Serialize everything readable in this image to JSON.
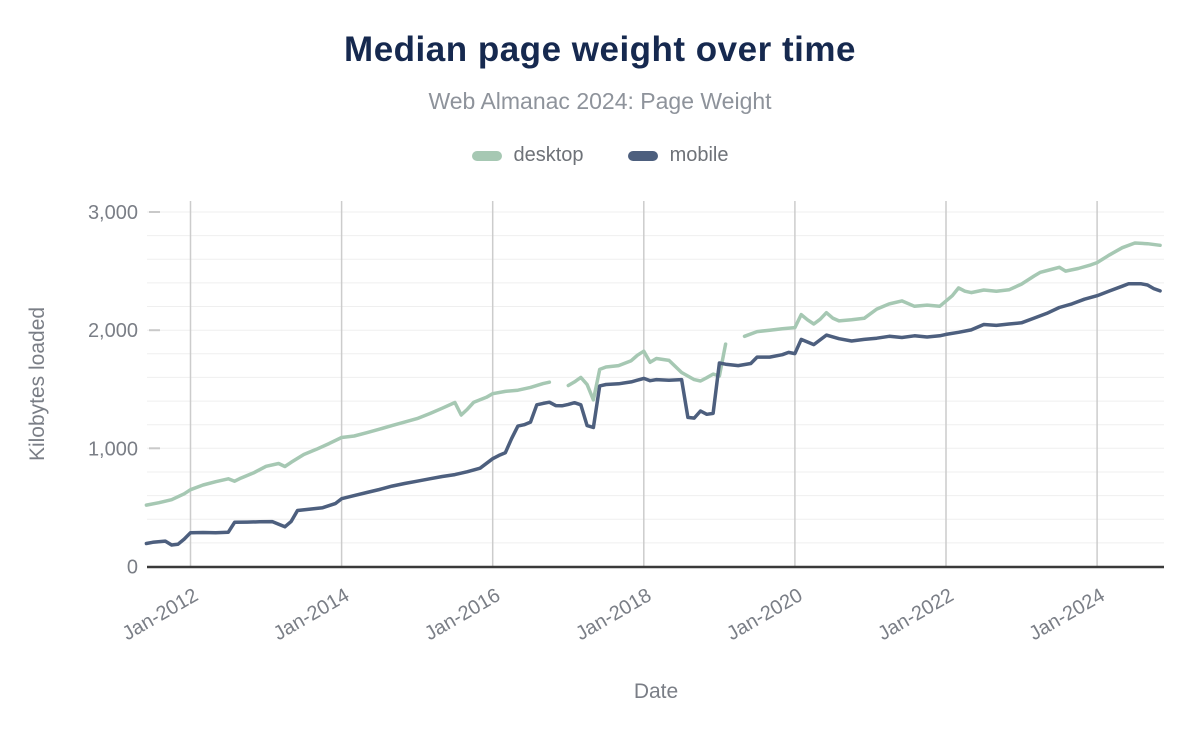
{
  "header": {
    "title": "Median page weight over time",
    "subtitle": "Web Almanac 2024: Page Weight"
  },
  "colors": {
    "title": "#16294f",
    "subtitle": "#8e939b",
    "tick_text": "#7a7e86",
    "axis_line": "#3a3a3a",
    "grid_minor": "#efefef",
    "grid_vertical": "#cccccc",
    "desktop": "#a6c8b3",
    "mobile": "#4d5f7e"
  },
  "chart_data": {
    "type": "line",
    "title": "Median page weight over time",
    "subtitle": "Web Almanac 2024: Page Weight",
    "xlabel": "Date",
    "ylabel": "Kilobytes loaded",
    "ylim": [
      0,
      3000
    ],
    "y_minor_step": 200,
    "grid": true,
    "legend_position": "top",
    "x_range_dates": [
      "2011-06",
      "2024-11"
    ],
    "x_ticks": [
      {
        "year": 2012,
        "label": "Jan-2012"
      },
      {
        "year": 2014,
        "label": "Jan-2014"
      },
      {
        "year": 2016,
        "label": "Jan-2016"
      },
      {
        "year": 2018,
        "label": "Jan-2018"
      },
      {
        "year": 2020,
        "label": "Jan-2020"
      },
      {
        "year": 2022,
        "label": "Jan-2022"
      },
      {
        "year": 2024,
        "label": "Jan-2024"
      }
    ],
    "y_ticks": [
      {
        "value": 0,
        "label": "0"
      },
      {
        "value": 1000,
        "label": "1,000"
      },
      {
        "value": 2000,
        "label": "2,000"
      },
      {
        "value": 3000,
        "label": "3,000"
      }
    ],
    "series": [
      {
        "name": "desktop",
        "color": "#a6c8b3",
        "unit": "KB",
        "points": [
          [
            "2011-06",
            520
          ],
          [
            "2011-08",
            540
          ],
          [
            "2011-10",
            565
          ],
          [
            "2011-12",
            615
          ],
          [
            "2012-01",
            650
          ],
          [
            "2012-03",
            690
          ],
          [
            "2012-05",
            718
          ],
          [
            "2012-07",
            742
          ],
          [
            "2012-08",
            722
          ],
          [
            "2012-09",
            748
          ],
          [
            "2012-11",
            792
          ],
          [
            "2013-01",
            848
          ],
          [
            "2013-03",
            872
          ],
          [
            "2013-04",
            846
          ],
          [
            "2013-05",
            882
          ],
          [
            "2013-07",
            948
          ],
          [
            "2013-09",
            992
          ],
          [
            "2013-11",
            1040
          ],
          [
            "2014-01",
            1092
          ],
          [
            "2014-03",
            1104
          ],
          [
            "2014-05",
            1132
          ],
          [
            "2014-07",
            1162
          ],
          [
            "2014-09",
            1192
          ],
          [
            "2014-11",
            1222
          ],
          [
            "2015-01",
            1252
          ],
          [
            "2015-03",
            1294
          ],
          [
            "2015-05",
            1340
          ],
          [
            "2015-07",
            1388
          ],
          [
            "2015-08",
            1282
          ],
          [
            "2015-09",
            1332
          ],
          [
            "2015-10",
            1390
          ],
          [
            "2015-12",
            1432
          ],
          [
            "2016-01",
            1462
          ],
          [
            "2016-03",
            1482
          ],
          [
            "2016-05",
            1492
          ],
          [
            "2016-07",
            1516
          ],
          [
            "2016-09",
            1548
          ],
          [
            "2016-10",
            1560
          ],
          [
            "2016-11",
            null
          ],
          [
            "2016-12",
            null
          ],
          [
            "2017-01",
            1532
          ],
          [
            "2017-02",
            1562
          ],
          [
            "2017-03",
            1600
          ],
          [
            "2017-04",
            1540
          ],
          [
            "2017-05",
            1410
          ],
          [
            "2017-06",
            1668
          ],
          [
            "2017-07",
            1688
          ],
          [
            "2017-09",
            1700
          ],
          [
            "2017-11",
            1742
          ],
          [
            "2017-12",
            1788
          ],
          [
            "2018-01",
            1822
          ],
          [
            "2018-02",
            1728
          ],
          [
            "2018-03",
            1760
          ],
          [
            "2018-05",
            1744
          ],
          [
            "2018-07",
            1642
          ],
          [
            "2018-09",
            1582
          ],
          [
            "2018-10",
            1570
          ],
          [
            "2018-11",
            1598
          ],
          [
            "2018-12",
            1628
          ],
          [
            "2019-01",
            1612
          ],
          [
            "2019-02",
            1882
          ],
          [
            "2019-03",
            null
          ],
          [
            "2019-04",
            null
          ],
          [
            "2019-05",
            1948
          ],
          [
            "2019-07",
            1988
          ],
          [
            "2019-09",
            2000
          ],
          [
            "2019-11",
            2012
          ],
          [
            "2020-01",
            2022
          ],
          [
            "2020-02",
            2132
          ],
          [
            "2020-03",
            2088
          ],
          [
            "2020-04",
            2052
          ],
          [
            "2020-05",
            2092
          ],
          [
            "2020-06",
            2148
          ],
          [
            "2020-07",
            2102
          ],
          [
            "2020-08",
            2078
          ],
          [
            "2020-10",
            2088
          ],
          [
            "2020-12",
            2100
          ],
          [
            "2021-02",
            2178
          ],
          [
            "2021-04",
            2222
          ],
          [
            "2021-06",
            2248
          ],
          [
            "2021-08",
            2202
          ],
          [
            "2021-10",
            2212
          ],
          [
            "2021-12",
            2202
          ],
          [
            "2022-02",
            2292
          ],
          [
            "2022-03",
            2358
          ],
          [
            "2022-04",
            2330
          ],
          [
            "2022-05",
            2318
          ],
          [
            "2022-07",
            2340
          ],
          [
            "2022-09",
            2330
          ],
          [
            "2022-11",
            2342
          ],
          [
            "2023-01",
            2390
          ],
          [
            "2023-03",
            2458
          ],
          [
            "2023-04",
            2490
          ],
          [
            "2023-06",
            2518
          ],
          [
            "2023-07",
            2532
          ],
          [
            "2023-08",
            2500
          ],
          [
            "2023-10",
            2522
          ],
          [
            "2023-12",
            2552
          ],
          [
            "2024-01",
            2572
          ],
          [
            "2024-03",
            2638
          ],
          [
            "2024-05",
            2698
          ],
          [
            "2024-07",
            2738
          ],
          [
            "2024-09",
            2732
          ],
          [
            "2024-11",
            2718
          ]
        ]
      },
      {
        "name": "mobile",
        "color": "#4d5f7e",
        "unit": "KB",
        "points": [
          [
            "2011-06",
            195
          ],
          [
            "2011-07",
            205
          ],
          [
            "2011-09",
            215
          ],
          [
            "2011-10",
            182
          ],
          [
            "2011-11",
            188
          ],
          [
            "2011-12",
            232
          ],
          [
            "2012-01",
            286
          ],
          [
            "2012-03",
            288
          ],
          [
            "2012-05",
            286
          ],
          [
            "2012-07",
            290
          ],
          [
            "2012-08",
            374
          ],
          [
            "2012-10",
            376
          ],
          [
            "2012-12",
            378
          ],
          [
            "2013-02",
            380
          ],
          [
            "2013-04",
            336
          ],
          [
            "2013-05",
            382
          ],
          [
            "2013-06",
            474
          ],
          [
            "2013-08",
            486
          ],
          [
            "2013-10",
            498
          ],
          [
            "2013-12",
            532
          ],
          [
            "2014-01",
            574
          ],
          [
            "2014-03",
            600
          ],
          [
            "2014-05",
            626
          ],
          [
            "2014-07",
            652
          ],
          [
            "2014-09",
            680
          ],
          [
            "2014-11",
            702
          ],
          [
            "2015-01",
            722
          ],
          [
            "2015-03",
            742
          ],
          [
            "2015-05",
            762
          ],
          [
            "2015-07",
            778
          ],
          [
            "2015-09",
            802
          ],
          [
            "2015-11",
            832
          ],
          [
            "2016-01",
            912
          ],
          [
            "2016-02",
            940
          ],
          [
            "2016-03",
            962
          ],
          [
            "2016-04",
            1082
          ],
          [
            "2016-05",
            1188
          ],
          [
            "2016-06",
            1200
          ],
          [
            "2016-07",
            1222
          ],
          [
            "2016-08",
            1368
          ],
          [
            "2016-09",
            1380
          ],
          [
            "2016-10",
            1390
          ],
          [
            "2016-11",
            1362
          ],
          [
            "2016-12",
            1360
          ],
          [
            "2017-01",
            1372
          ],
          [
            "2017-02",
            1386
          ],
          [
            "2017-03",
            1368
          ],
          [
            "2017-04",
            1192
          ],
          [
            "2017-05",
            1176
          ],
          [
            "2017-06",
            1528
          ],
          [
            "2017-07",
            1540
          ],
          [
            "2017-09",
            1546
          ],
          [
            "2017-11",
            1562
          ],
          [
            "2018-01",
            1592
          ],
          [
            "2018-02",
            1572
          ],
          [
            "2018-03",
            1582
          ],
          [
            "2018-05",
            1576
          ],
          [
            "2018-07",
            1582
          ],
          [
            "2018-08",
            1262
          ],
          [
            "2018-09",
            1256
          ],
          [
            "2018-10",
            1316
          ],
          [
            "2018-11",
            1288
          ],
          [
            "2018-12",
            1296
          ],
          [
            "2019-01",
            1722
          ],
          [
            "2019-02",
            1712
          ],
          [
            "2019-04",
            1700
          ],
          [
            "2019-06",
            1718
          ],
          [
            "2019-07",
            1772
          ],
          [
            "2019-09",
            1772
          ],
          [
            "2019-11",
            1792
          ],
          [
            "2019-12",
            1812
          ],
          [
            "2020-01",
            1802
          ],
          [
            "2020-02",
            1922
          ],
          [
            "2020-04",
            1878
          ],
          [
            "2020-06",
            1958
          ],
          [
            "2020-08",
            1928
          ],
          [
            "2020-10",
            1908
          ],
          [
            "2020-12",
            1922
          ],
          [
            "2021-02",
            1932
          ],
          [
            "2021-04",
            1948
          ],
          [
            "2021-06",
            1938
          ],
          [
            "2021-08",
            1952
          ],
          [
            "2021-10",
            1942
          ],
          [
            "2021-12",
            1952
          ],
          [
            "2022-01",
            1964
          ],
          [
            "2022-03",
            1982
          ],
          [
            "2022-05",
            2002
          ],
          [
            "2022-07",
            2048
          ],
          [
            "2022-09",
            2040
          ],
          [
            "2022-11",
            2052
          ],
          [
            "2023-01",
            2062
          ],
          [
            "2023-03",
            2102
          ],
          [
            "2023-05",
            2142
          ],
          [
            "2023-07",
            2192
          ],
          [
            "2023-09",
            2222
          ],
          [
            "2023-11",
            2262
          ],
          [
            "2024-01",
            2292
          ],
          [
            "2024-03",
            2332
          ],
          [
            "2024-05",
            2372
          ],
          [
            "2024-06",
            2392
          ],
          [
            "2024-08",
            2392
          ],
          [
            "2024-09",
            2382
          ],
          [
            "2024-10",
            2352
          ],
          [
            "2024-11",
            2332
          ]
        ]
      }
    ]
  }
}
